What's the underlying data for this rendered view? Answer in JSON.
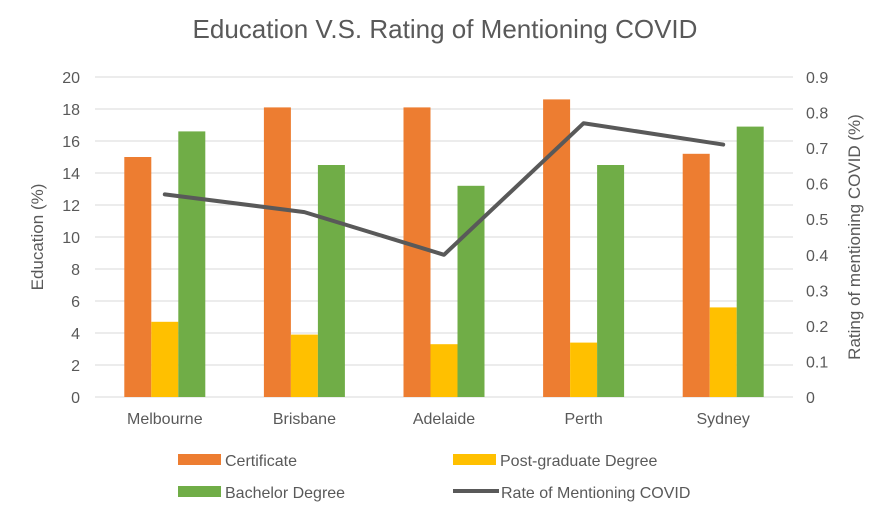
{
  "chart_data": {
    "type": "bar",
    "title": "Education V.S. Rating of Mentioning COVID",
    "categories": [
      "Melbourne",
      "Brisbane",
      "Adelaide",
      "Perth",
      "Sydney"
    ],
    "series": [
      {
        "name": "Certificate",
        "kind": "bar",
        "axis": "left",
        "color": "#ED7D31",
        "values": [
          15.0,
          18.1,
          18.1,
          18.6,
          15.2
        ]
      },
      {
        "name": "Post-graduate Degree",
        "kind": "bar",
        "axis": "left",
        "color": "#FFC000",
        "values": [
          4.7,
          3.9,
          3.3,
          3.4,
          5.6
        ]
      },
      {
        "name": "Bachelor Degree",
        "kind": "bar",
        "axis": "left",
        "color": "#70AD47",
        "values": [
          16.6,
          14.5,
          13.2,
          14.5,
          16.9
        ]
      },
      {
        "name": "Rate of Mentioning COVID",
        "kind": "line",
        "axis": "right",
        "color": "#595959",
        "values": [
          0.57,
          0.52,
          0.4,
          0.77,
          0.71
        ]
      }
    ],
    "ylabel": "Education (%)",
    "y2label": "Rating of mentioning COVID (%)",
    "ylim": [
      0,
      20
    ],
    "y2lim": [
      0,
      0.9
    ],
    "yticks": [
      "0",
      "2",
      "4",
      "6",
      "8",
      "10",
      "12",
      "14",
      "16",
      "18",
      "20"
    ],
    "y2ticks": [
      "0",
      "0.1",
      "0.2",
      "0.3",
      "0.4",
      "0.5",
      "0.6",
      "0.7",
      "0.8",
      "0.9"
    ],
    "grid": true,
    "legend": "bottom"
  }
}
